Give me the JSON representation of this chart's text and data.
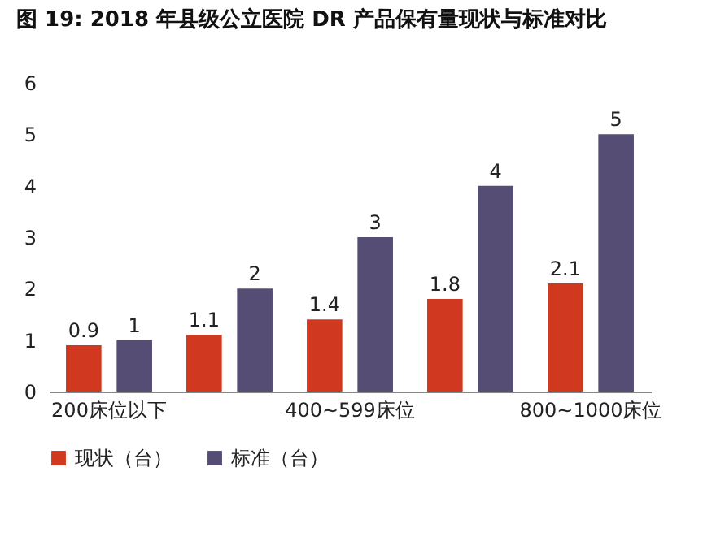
{
  "chart_data": {
    "type": "bar",
    "title": "图 19: 2018 年县级公立医院 DR 产品保有量现状与标准对比",
    "categories": [
      "200床位以下",
      null,
      "400~599床位",
      null,
      "800~1000床位"
    ],
    "series": [
      {
        "name": "现状（台）",
        "color": "#d0381f",
        "values": [
          0.9,
          1.1,
          1.4,
          1.8,
          2.1
        ]
      },
      {
        "name": "标准（台）",
        "color": "#564d75",
        "values": [
          1,
          2,
          3,
          4,
          5
        ]
      }
    ],
    "ylim": [
      0,
      6
    ],
    "yticks": [
      0,
      1,
      2,
      3,
      4,
      5,
      6
    ],
    "grid": false,
    "legend": "bottom",
    "data_labels": true
  }
}
